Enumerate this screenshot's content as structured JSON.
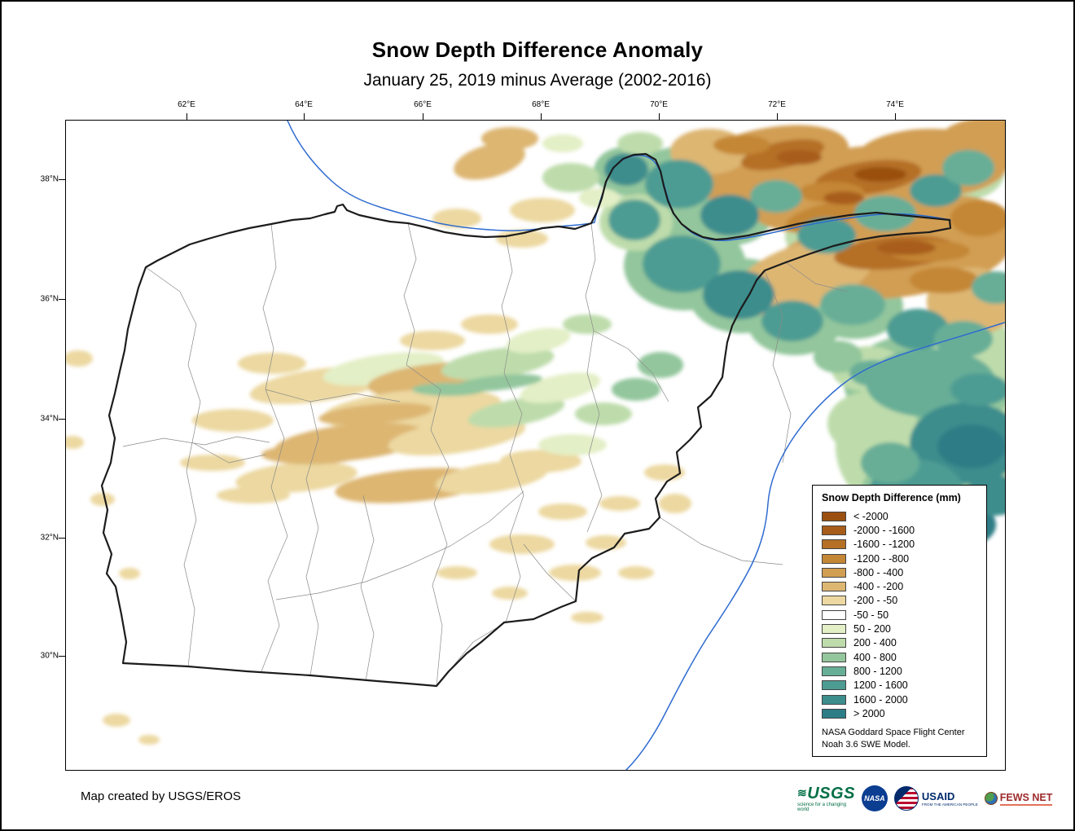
{
  "title": "Snow Depth Difference Anomaly",
  "subtitle": "January 25, 2019 minus Average (2002-2016)",
  "map": {
    "lon_ticks": [
      "62°E",
      "64°E",
      "66°E",
      "68°E",
      "70°E",
      "72°E",
      "74°E"
    ],
    "lat_ticks": [
      "38°N",
      "36°N",
      "34°N",
      "32°N",
      "30°N"
    ]
  },
  "legend": {
    "title": "Snow Depth Difference (mm)",
    "entries": [
      {
        "label": "< -2000",
        "color": "#9a4f10"
      },
      {
        "label": "-2000 - -1600",
        "color": "#a85d1a"
      },
      {
        "label": "-1600 - -1200",
        "color": "#b57026"
      },
      {
        "label": "-1200 - -800",
        "color": "#c48736"
      },
      {
        "label": "-800 - -400",
        "color": "#d19e52"
      },
      {
        "label": "-400 - -200",
        "color": "#ddb672"
      },
      {
        "label": "-200 - -50",
        "color": "#ecd8a0"
      },
      {
        "label": "-50 - 50",
        "color": "#ffffff"
      },
      {
        "label": "50 - 200",
        "color": "#e3efc6"
      },
      {
        "label": "200 - 400",
        "color": "#bedcab"
      },
      {
        "label": "400 - 800",
        "color": "#93c69c"
      },
      {
        "label": "800 - 1200",
        "color": "#67ae97"
      },
      {
        "label": "1200 - 1600",
        "color": "#4d9c93"
      },
      {
        "label": "1600 - 2000",
        "color": "#3d8d8d"
      },
      {
        "label": "> 2000",
        "color": "#2d7d86"
      }
    ],
    "source_line1": "NASA Goddard Space Flight Center",
    "source_line2": "Noah 3.6 SWE Model."
  },
  "footer": {
    "credit": "Map created by USGS/EROS"
  },
  "logos": {
    "usgs": {
      "name": "USGS",
      "tagline": "science for a changing world"
    },
    "nasa": {
      "name": "NASA"
    },
    "usaid": {
      "name": "USAID",
      "tagline": "FROM THE AMERICAN PEOPLE"
    },
    "fewsnet": {
      "name": "FEWS NET"
    }
  }
}
